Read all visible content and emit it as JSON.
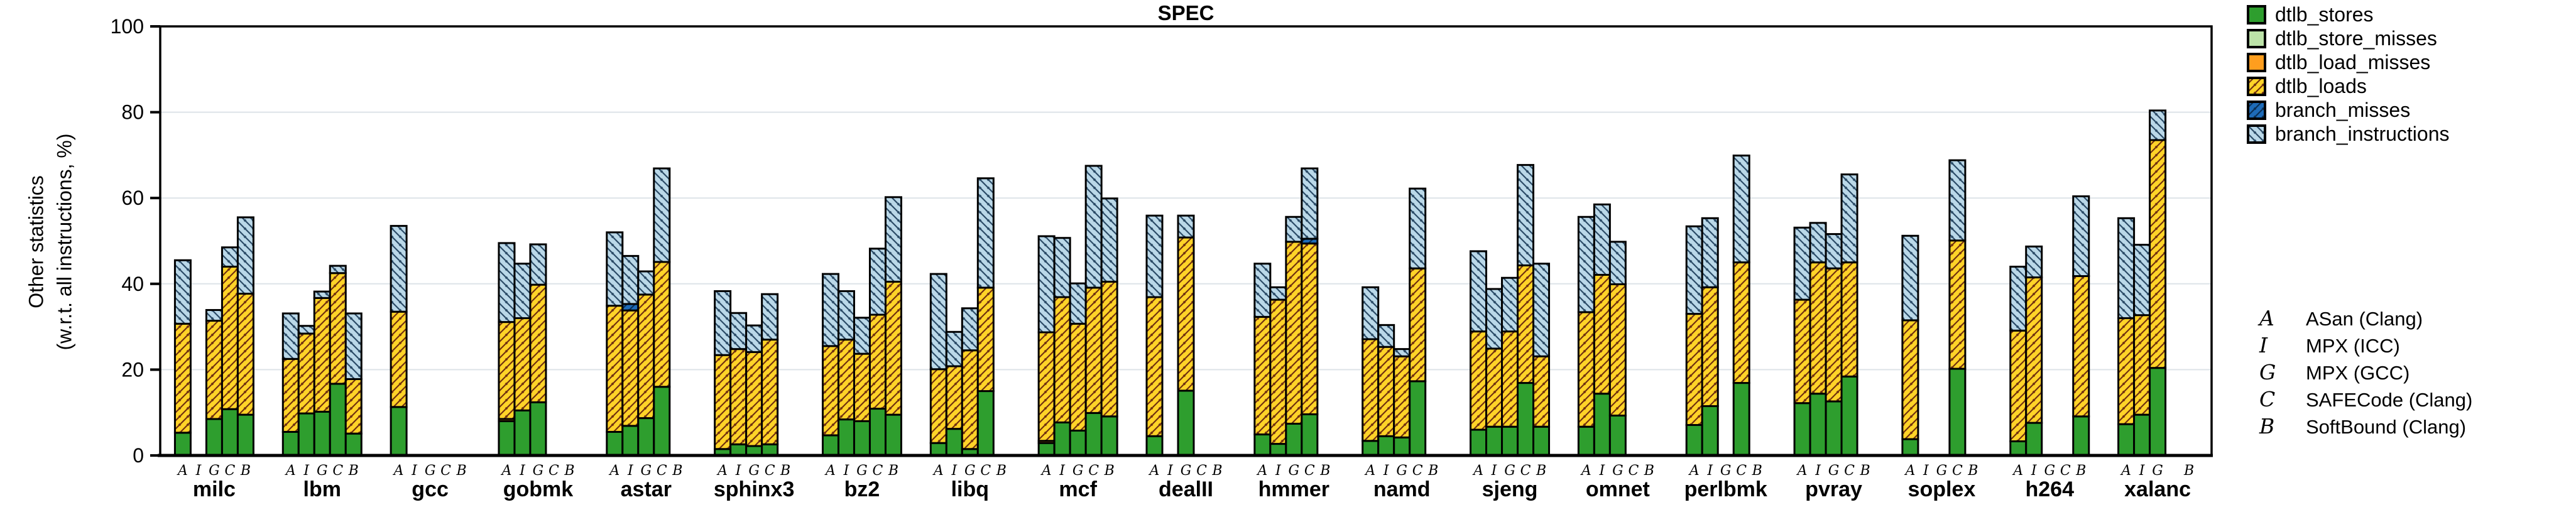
{
  "title": "SPEC",
  "ylabel_line1": "Other statistics",
  "ylabel_line2": "(w.r.t. all instructions, %)",
  "legend": {
    "series": [
      {
        "id": "dtlb_stores",
        "label": "dtlb_stores",
        "fill": "#2E9E2E",
        "hatch": "none"
      },
      {
        "id": "dtlb_store_misses",
        "label": "dtlb_store_misses",
        "fill": "#BCE3A8",
        "hatch": "none"
      },
      {
        "id": "dtlb_load_misses",
        "label": "dtlb_load_misses",
        "fill": "#FF9E1E",
        "hatch": "none"
      },
      {
        "id": "dtlb_loads",
        "label": "dtlb_loads",
        "fill": "#FFD328",
        "hatch": "fwd",
        "hatch_color": "#703010"
      },
      {
        "id": "branch_misses",
        "label": "branch_misses",
        "fill": "#1E6BB8",
        "hatch": "fwd",
        "hatch_color": "#0A2F55"
      },
      {
        "id": "branch_instructions",
        "label": "branch_instructions",
        "fill": "#BAD8E8",
        "hatch": "bwd",
        "hatch_color": "#2A4A66"
      }
    ]
  },
  "tools_legend": [
    {
      "key": "A",
      "name": "ASan (Clang)"
    },
    {
      "key": "I",
      "name": "MPX (ICC)"
    },
    {
      "key": "G",
      "name": "MPX (GCC)"
    },
    {
      "key": "C",
      "name": "SAFECode (Clang)"
    },
    {
      "key": "B",
      "name": "SoftBound (Clang)"
    }
  ],
  "chart_data": {
    "type": "bar",
    "subtype": "stacked-grouped",
    "title": "SPEC",
    "ylabel": "Other statistics (w.r.t. all instructions, %)",
    "ylim": [
      0,
      100
    ],
    "yticks": [
      0,
      20,
      40,
      60,
      80,
      100
    ],
    "grid": true,
    "legend_position": "right",
    "stack_order": [
      "dtlb_stores",
      "dtlb_store_misses",
      "dtlb_load_misses",
      "dtlb_loads",
      "branch_misses",
      "branch_instructions"
    ],
    "configs": [
      "A",
      "I",
      "G",
      "C",
      "B"
    ],
    "segment_note": "each bar = [dtlb_stores, dtlb_store_misses, dtlb_load_misses, dtlb_loads, branch_misses, branch_instructions] in %; null = configuration not present",
    "groups": [
      {
        "name": "milc",
        "letters": [
          "A",
          "I",
          "G",
          "C",
          "B"
        ],
        "bars": [
          [
            5.3,
            0,
            0,
            25.4,
            0,
            14.8
          ],
          null,
          [
            8.5,
            0,
            0,
            22.9,
            0,
            2.5
          ],
          [
            10.8,
            0,
            0,
            33.2,
            0,
            4.5
          ],
          [
            9.5,
            0,
            0,
            28.2,
            0,
            17.8
          ]
        ]
      },
      {
        "name": "lbm",
        "letters": [
          "A",
          "I",
          "G",
          "C",
          "B"
        ],
        "bars": [
          [
            5.5,
            0,
            0,
            17.0,
            0,
            10.6
          ],
          [
            9.8,
            0,
            0,
            18.6,
            0,
            1.8
          ],
          [
            10.2,
            0,
            0,
            26.5,
            0,
            1.5
          ],
          [
            16.7,
            0,
            0,
            25.8,
            0,
            1.7
          ],
          [
            5.1,
            0,
            0,
            12.7,
            0,
            15.3
          ]
        ]
      },
      {
        "name": "gcc",
        "letters": [
          "A",
          "I",
          "G",
          "C",
          "B"
        ],
        "bars": [
          [
            11.3,
            0,
            0,
            22.2,
            0,
            20.0
          ],
          null,
          null,
          null,
          null
        ]
      },
      {
        "name": "gobmk",
        "letters": [
          "A",
          "I",
          "G",
          "C",
          "B"
        ],
        "bars": [
          [
            8.0,
            0,
            0.5,
            22.6,
            0,
            18.4
          ],
          [
            10.5,
            0,
            0,
            21.5,
            0,
            12.7
          ],
          [
            12.4,
            0,
            0,
            27.4,
            0,
            9.4
          ],
          null,
          null
        ]
      },
      {
        "name": "astar",
        "letters": [
          "A",
          "I",
          "G",
          "C",
          "B"
        ],
        "bars": [
          [
            5.5,
            0,
            0,
            29.4,
            0,
            17.1
          ],
          [
            6.9,
            0,
            0,
            26.9,
            1.5,
            11.2
          ],
          [
            8.7,
            0,
            0,
            28.8,
            0,
            5.4
          ],
          [
            16.0,
            0,
            0,
            29.1,
            0,
            21.8
          ],
          null
        ]
      },
      {
        "name": "sphinx3",
        "letters": [
          "A",
          "I",
          "G",
          "C",
          "B"
        ],
        "bars": [
          [
            1.5,
            0,
            0,
            21.9,
            0,
            14.9
          ],
          [
            2.6,
            0,
            0,
            22.2,
            0,
            8.4
          ],
          [
            2.2,
            0,
            0,
            21.9,
            0,
            6.2
          ],
          [
            2.6,
            0,
            0,
            24.4,
            0,
            10.6
          ],
          null
        ]
      },
      {
        "name": "bz2",
        "letters": [
          "A",
          "I",
          "G",
          "C",
          "B"
        ],
        "bars": [
          [
            4.7,
            0,
            0,
            20.8,
            0,
            16.8
          ],
          [
            8.4,
            0,
            0,
            18.6,
            0,
            11.3
          ],
          [
            8.0,
            0,
            0,
            15.7,
            0,
            8.4
          ],
          [
            10.9,
            0,
            0,
            21.9,
            0,
            15.4
          ],
          [
            9.5,
            0,
            0,
            31.0,
            0,
            19.7
          ]
        ]
      },
      {
        "name": "libq",
        "letters": [
          "A",
          "I",
          "G",
          "C",
          "B"
        ],
        "bars": [
          [
            2.9,
            0,
            0,
            17.2,
            0,
            22.2
          ],
          [
            6.2,
            0,
            0,
            14.6,
            0,
            8.0
          ],
          [
            1.5,
            0,
            0,
            23.0,
            0,
            9.8
          ],
          [
            15.0,
            0,
            0,
            24.1,
            0,
            25.5
          ],
          null
        ]
      },
      {
        "name": "mcf",
        "letters": [
          "A",
          "I",
          "G",
          "C",
          "B"
        ],
        "bars": [
          [
            2.9,
            0,
            0.5,
            25.3,
            0,
            22.4
          ],
          [
            7.7,
            0,
            0,
            29.2,
            0,
            13.8
          ],
          [
            5.8,
            0,
            0,
            24.9,
            0,
            9.4
          ],
          [
            9.9,
            0,
            0,
            29.2,
            0,
            28.4
          ],
          [
            9.1,
            0,
            0,
            31.4,
            0,
            19.4
          ]
        ]
      },
      {
        "name": "dealII",
        "letters": [
          "A",
          "I",
          "G",
          "C",
          "B"
        ],
        "bars": [
          [
            4.5,
            0,
            0,
            32.4,
            0,
            19.0
          ],
          null,
          [
            15.1,
            0,
            0,
            35.7,
            0,
            5.1
          ],
          null,
          null
        ]
      },
      {
        "name": "hmmer",
        "letters": [
          "A",
          "I",
          "G",
          "C",
          "B"
        ],
        "bars": [
          [
            4.9,
            0,
            0,
            27.4,
            0,
            12.4
          ],
          [
            2.7,
            0,
            0,
            33.6,
            0,
            2.9
          ],
          [
            7.4,
            0,
            0,
            42.4,
            0,
            5.8
          ],
          [
            9.6,
            0,
            0,
            39.8,
            1.1,
            16.4
          ],
          null
        ]
      },
      {
        "name": "namd",
        "letters": [
          "A",
          "I",
          "G",
          "C",
          "B"
        ],
        "bars": [
          [
            3.4,
            0,
            0,
            23.7,
            0,
            12.1
          ],
          [
            4.5,
            0,
            0,
            20.8,
            0,
            5.1
          ],
          [
            4.2,
            0,
            0,
            18.9,
            0,
            1.7
          ],
          [
            17.3,
            0,
            0,
            26.3,
            0,
            18.6
          ],
          null
        ]
      },
      {
        "name": "sjeng",
        "letters": [
          "A",
          "I",
          "G",
          "C",
          "B"
        ],
        "bars": [
          [
            6.0,
            0,
            0,
            22.9,
            0,
            18.7
          ],
          [
            6.7,
            0,
            0,
            18.2,
            0,
            13.9
          ],
          [
            6.7,
            0,
            0,
            22.2,
            0,
            12.5
          ],
          [
            16.9,
            0,
            0,
            27.4,
            0,
            23.4
          ],
          [
            6.7,
            0,
            0,
            16.4,
            0,
            21.6
          ]
        ]
      },
      {
        "name": "omnet",
        "letters": [
          "A",
          "I",
          "G",
          "C",
          "B"
        ],
        "bars": [
          [
            6.7,
            0,
            0,
            26.7,
            0,
            22.2
          ],
          [
            14.4,
            0,
            0,
            27.7,
            0,
            16.4
          ],
          [
            9.3,
            0,
            0,
            30.6,
            0,
            9.9
          ],
          null,
          null
        ]
      },
      {
        "name": "perlbmk",
        "letters": [
          "A",
          "I",
          "G",
          "C",
          "B"
        ],
        "bars": [
          [
            7.1,
            0,
            0,
            25.9,
            0,
            20.4
          ],
          [
            11.5,
            0,
            0,
            27.7,
            0,
            16.1
          ],
          null,
          [
            16.9,
            0,
            0,
            28.1,
            0,
            24.9
          ],
          null
        ]
      },
      {
        "name": "pvray",
        "letters": [
          "A",
          "I",
          "G",
          "C",
          "B"
        ],
        "bars": [
          [
            12.2,
            0,
            0,
            24.1,
            0,
            16.8
          ],
          [
            14.4,
            0,
            0,
            30.6,
            0,
            9.2
          ],
          [
            12.6,
            0,
            0,
            31.0,
            0,
            8.0
          ],
          [
            18.4,
            0,
            0,
            26.6,
            0,
            20.5
          ],
          null
        ]
      },
      {
        "name": "soplex",
        "letters": [
          "A",
          "I",
          "G",
          "C",
          "B"
        ],
        "bars": [
          [
            3.8,
            0,
            0,
            27.7,
            0,
            19.7
          ],
          null,
          null,
          [
            20.2,
            0,
            0,
            29.9,
            0,
            18.7
          ],
          null
        ]
      },
      {
        "name": "h264",
        "letters": [
          "A",
          "I",
          "G",
          "C",
          "B"
        ],
        "bars": [
          [
            3.3,
            0,
            0,
            25.8,
            0,
            14.9
          ],
          [
            7.6,
            0,
            0,
            33.9,
            0,
            7.2
          ],
          null,
          null,
          [
            9.1,
            0,
            0,
            32.7,
            0,
            18.6
          ]
        ]
      },
      {
        "name": "xalanc",
        "letters": [
          "A",
          "I",
          "G",
          "",
          "B"
        ],
        "bars": [
          [
            7.3,
            0,
            0,
            24.7,
            0,
            23.3
          ],
          [
            9.5,
            0,
            0,
            23.2,
            0,
            16.4
          ],
          [
            20.4,
            0,
            0,
            53.1,
            0,
            6.9
          ],
          null,
          null
        ]
      }
    ]
  }
}
